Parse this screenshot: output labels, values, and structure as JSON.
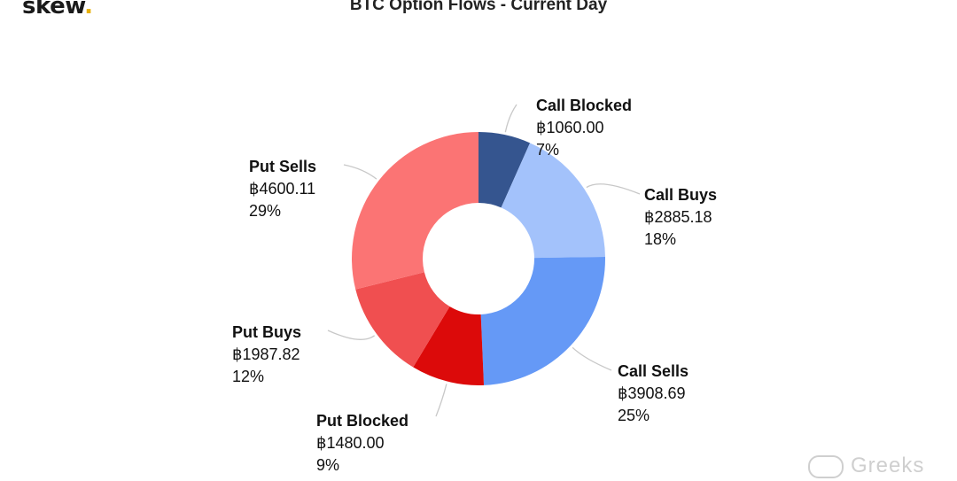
{
  "logo": {
    "text": "skew",
    "dot": "."
  },
  "watermark": {
    "text": "Greeks"
  },
  "chart_data": {
    "type": "pie",
    "donut": true,
    "title": "BTC Option Flows - Current Day",
    "currency_symbol": "฿",
    "slices": [
      {
        "name": "Call Blocked",
        "value": 1060.0,
        "value_label": "฿1060.00",
        "percent_label": "7%",
        "color": "#35558f"
      },
      {
        "name": "Call Buys",
        "value": 2885.18,
        "value_label": "฿2885.18",
        "percent_label": "18%",
        "color": "#a3c2fb"
      },
      {
        "name": "Call Sells",
        "value": 3908.69,
        "value_label": "฿3908.69",
        "percent_label": "25%",
        "color": "#6599f6"
      },
      {
        "name": "Put Blocked",
        "value": 1480.0,
        "value_label": "฿1480.00",
        "percent_label": "9%",
        "color": "#dc0a0a"
      },
      {
        "name": "Put Buys",
        "value": 1987.82,
        "value_label": "฿1987.82",
        "percent_label": "12%",
        "color": "#f04f50"
      },
      {
        "name": "Put Sells",
        "value": 4600.11,
        "value_label": "฿4600.11",
        "percent_label": "29%",
        "color": "#fb7474"
      }
    ]
  }
}
